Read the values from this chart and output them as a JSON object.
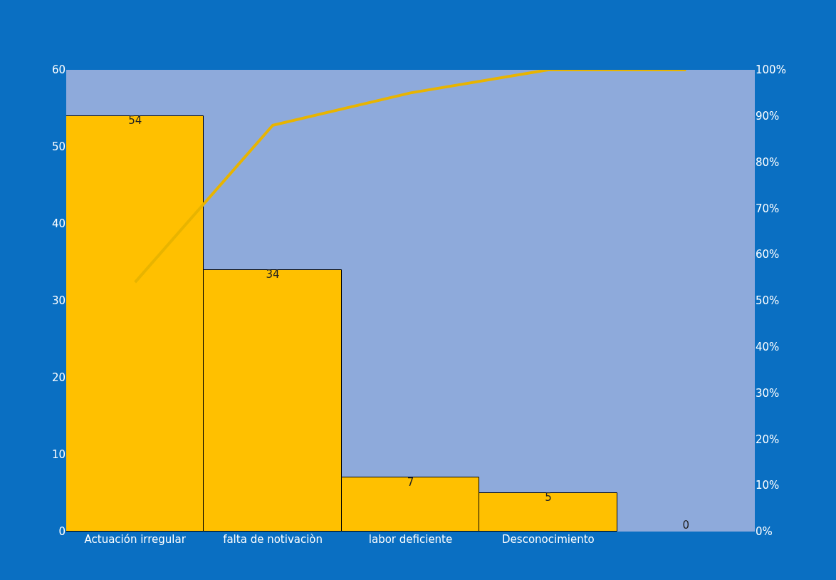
{
  "chart_data": {
    "type": "bar",
    "categories": [
      "Actuación irregular",
      "falta de notivaciòn",
      "labor deficiente",
      "Desconocimiento",
      null
    ],
    "series": [
      {
        "color": "#ffc000",
        "values": [
          54,
          34,
          7,
          5,
          0
        ],
        "value_labels": [
          "54",
          "34",
          "7",
          "5",
          "0"
        ]
      },
      {
        "type": "line",
        "axis": "y2",
        "color": "#e8b400",
        "values": [
          54,
          88,
          95,
          100,
          100
        ]
      }
    ],
    "ylim": [
      0,
      60
    ],
    "yticks": [
      0,
      10,
      20,
      30,
      40,
      50,
      60
    ],
    "y2lim": [
      0,
      100
    ],
    "y2ticks": [
      {
        "value": 0,
        "label": "0%"
      },
      {
        "value": 10,
        "label": "10%"
      },
      {
        "value": 20,
        "label": "20%"
      },
      {
        "value": 30,
        "label": "30%"
      },
      {
        "value": 40,
        "label": "40%"
      },
      {
        "value": 50,
        "label": "50%"
      },
      {
        "value": 60,
        "label": "60%"
      },
      {
        "value": 70,
        "label": "70%"
      },
      {
        "value": 80,
        "label": "80%"
      },
      {
        "value": 90,
        "label": "90%"
      },
      {
        "value": 100,
        "label": "100%"
      }
    ],
    "grid": false,
    "marker": "none",
    "line_style": "solid"
  }
}
